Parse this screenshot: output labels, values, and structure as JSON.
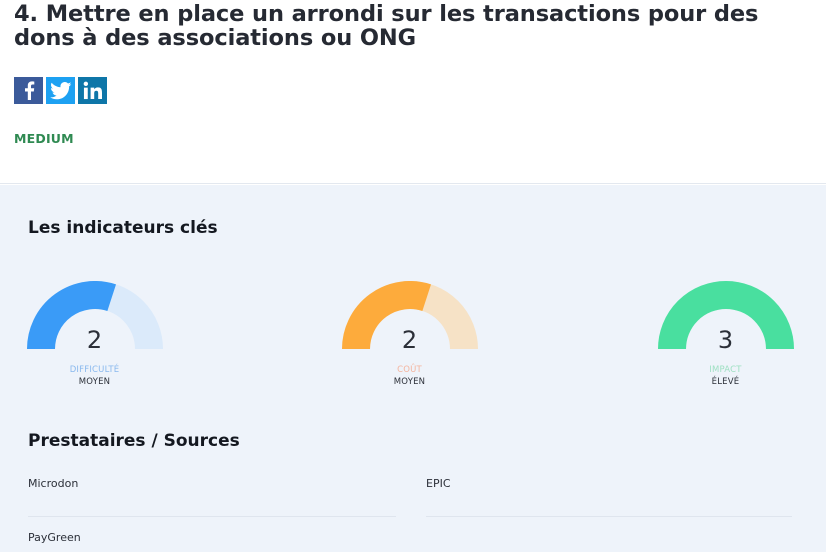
{
  "article": {
    "title": "4. Mettre en place un arrondi sur les transactions pour des dons à des associations ou ONG",
    "level": "MEDIUM"
  },
  "social": [
    {
      "name": "facebook-icon",
      "color": "#3b5a9a"
    },
    {
      "name": "twitter-icon",
      "color": "#1da1f2"
    },
    {
      "name": "linkedin-icon",
      "color": "#0e76a8"
    }
  ],
  "indicators": {
    "heading": "Les indicateurs clés",
    "items": [
      {
        "value": "2",
        "label": "DIFFICULTÉ",
        "rating": "MOYEN",
        "fill": 0.6,
        "color": "#3a9bf7",
        "track": "#dbeafa"
      },
      {
        "value": "2",
        "label": "COÛT",
        "rating": "MOYEN",
        "fill": 0.6,
        "color": "#fdab3c",
        "track": "#f6e2c6"
      },
      {
        "value": "3",
        "label": "IMPACT",
        "rating": "ÉLEVÉ",
        "fill": 1.0,
        "color": "#49df9f",
        "track": "#cdf3e1"
      }
    ]
  },
  "providers": {
    "heading": "Prestataires / Sources",
    "items": [
      "Microdon",
      "EPIC",
      "PayGreen"
    ]
  }
}
